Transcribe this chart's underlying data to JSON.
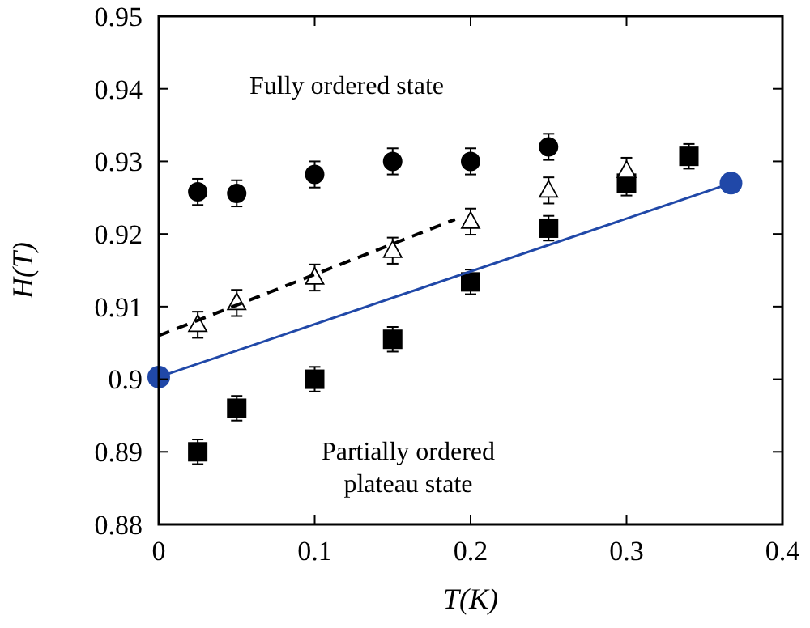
{
  "chart_data": {
    "type": "scatter",
    "xlabel": "T(K)",
    "ylabel": "H(T)",
    "xlim": [
      0,
      0.4
    ],
    "ylim": [
      0.88,
      0.95
    ],
    "xticks": [
      0,
      0.1,
      0.2,
      0.3,
      0.4
    ],
    "yticks": [
      0.88,
      0.89,
      0.9,
      0.91,
      0.92,
      0.93,
      0.94,
      0.95
    ],
    "grid": false,
    "annotations": [
      "Fully ordered state",
      "Partially ordered plateau state"
    ],
    "series": [
      {
        "color": "#000000",
        "marker": "circle",
        "x": [
          0.025,
          0.05,
          0.1,
          0.15,
          0.2,
          0.25
        ],
        "values": [
          0.9258,
          0.9256,
          0.9282,
          0.93,
          0.93,
          0.932
        ],
        "errors": [
          0.0018,
          0.0018,
          0.0018,
          0.0018,
          0.0018,
          0.0018
        ]
      },
      {
        "color": "#000000",
        "marker": "square",
        "x": [
          0.025,
          0.05,
          0.1,
          0.15,
          0.2,
          0.25,
          0.3,
          0.34
        ],
        "values": [
          0.89,
          0.896,
          0.9,
          0.9055,
          0.9134,
          0.9208,
          0.927,
          0.9307
        ],
        "errors": [
          0.0017,
          0.0017,
          0.0017,
          0.0017,
          0.0017,
          0.0017,
          0.0017,
          0.0017
        ]
      },
      {
        "color": "#000000",
        "marker": "triangle",
        "x": [
          0.025,
          0.05,
          0.1,
          0.15,
          0.2,
          0.25,
          0.3
        ],
        "values": [
          0.9075,
          0.9105,
          0.914,
          0.9177,
          0.9217,
          0.926,
          0.9287
        ],
        "errors": [
          0.0018,
          0.0018,
          0.0018,
          0.0018,
          0.0018,
          0.0018,
          0.0018
        ]
      },
      {
        "type": "line",
        "color": "#000000",
        "marker": "none",
        "line_style": "dashed",
        "x": [
          0,
          0.19
        ],
        "values": [
          0.906,
          0.922
        ]
      },
      {
        "type": "line",
        "color": "#2048a8",
        "marker": "circle",
        "line_style": "solid",
        "x": [
          0,
          0.367
        ],
        "values": [
          0.9003,
          0.927
        ]
      }
    ]
  }
}
